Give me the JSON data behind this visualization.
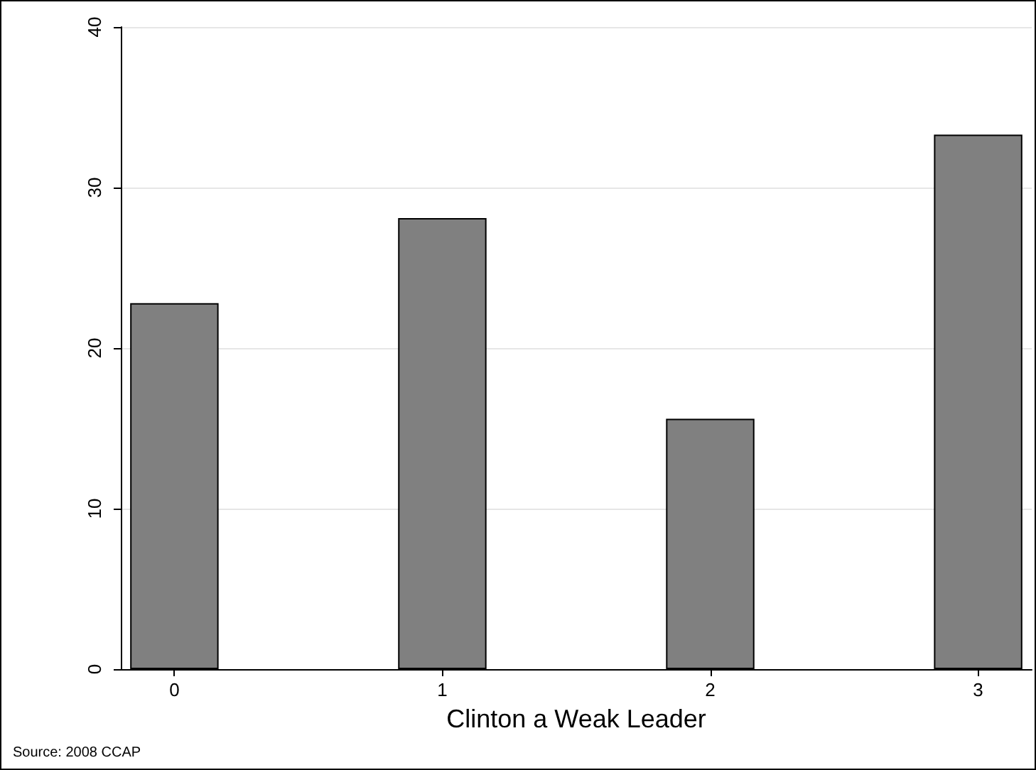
{
  "chart_data": {
    "type": "bar",
    "xlabel": "Clinton a Weak Leader",
    "annotations": [
      "Source: 2008 CCAP"
    ],
    "x": [
      0,
      1,
      2,
      3
    ],
    "values": [
      22.8,
      28.1,
      15.6,
      33.3
    ],
    "color": "#808080",
    "xlim": [
      -0.2,
      3.2
    ],
    "xticks": [
      0,
      1,
      2,
      3
    ],
    "ylim": [
      0,
      40
    ],
    "yticks": [
      0,
      10,
      20,
      30,
      40
    ],
    "grid": "y"
  }
}
